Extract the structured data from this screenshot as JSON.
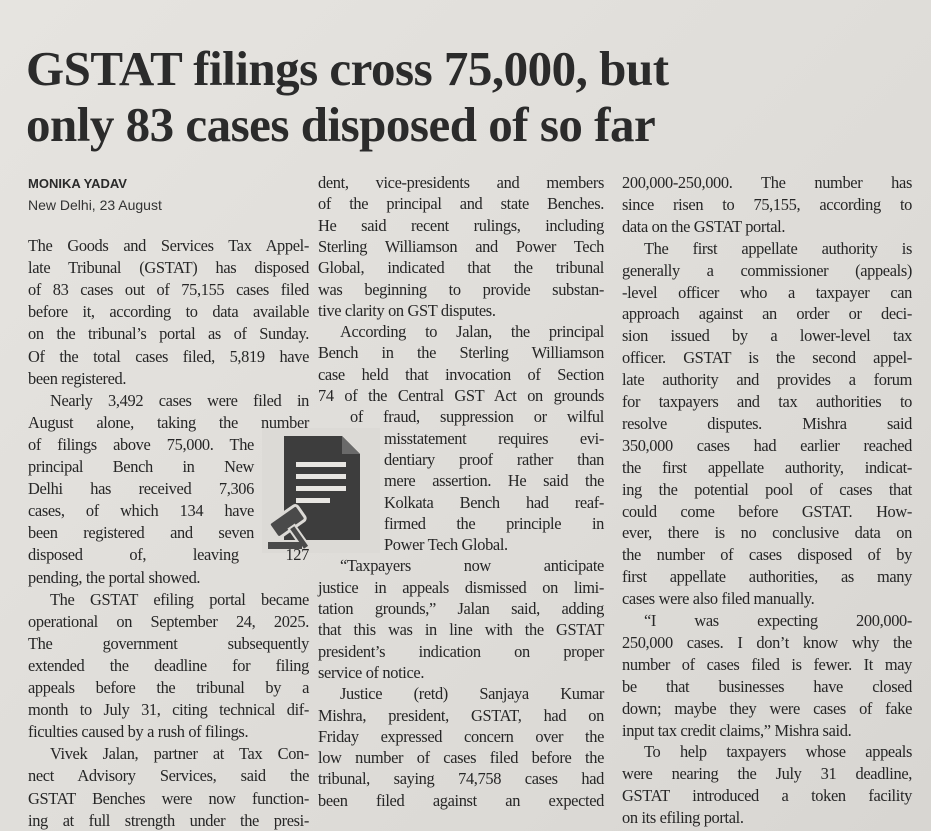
{
  "headline": [
    "GSTAT filings cross 75,000, but",
    "only 83 cases disposed of so far"
  ],
  "byline": {
    "author": "MONIKA YADAV",
    "dateline": "New Delhi, 23 August"
  },
  "columns": [
    [
      [
        "The Goods and Services Tax Appel-",
        "late Tribunal (GSTAT) has disposed",
        "of 83 cases out of 75,155 cases filed",
        "before it, according to data available",
        "on the tribunal’s portal as of Sunday.",
        "Of the total cases filed, 5,819 have",
        "been registered."
      ],
      [
        "Nearly 3,492 cases were filed in",
        "August alone, taking the number",
        "of filings above 75,000. The",
        "principal Bench in New",
        "Delhi has received 7,306",
        "cases, of which 134 have",
        "been registered and seven",
        "disposed of, leaving 127",
        "pending, the portal showed."
      ],
      [
        "The GSTAT efiling portal became",
        "operational on September 24, 2025.",
        "The government subsequently",
        "extended the deadline for filing",
        "appeals before the tribunal by a",
        "month to July 31, citing technical dif-",
        "ficulties caused by a rush of filings."
      ],
      [
        "Vivek Jalan, partner at Tax Con-",
        "nect Advisory Services, said the",
        "GSTAT Benches were now function-",
        "ing at full strength under the presi-"
      ]
    ],
    [
      [
        "dent, vice-presidents and members",
        "of the principal and state Benches.",
        "He said recent rulings, including",
        "Sterling Williamson and Power Tech",
        "Global, indicated that the tribunal",
        "was beginning to provide substan-",
        "tive clarity on GST disputes."
      ],
      [
        "According to Jalan, the principal",
        "Bench in the Sterling Williamson",
        "case held that invocation of Section",
        "74 of the Central GST Act on grounds",
        "of fraud, suppression or wilful",
        "misstatement requires evi-",
        "dentiary proof rather than",
        "mere assertion. He said the",
        "Kolkata Bench had reaf-",
        "firmed the principle in",
        "Power Tech Global."
      ],
      [
        "“Taxpayers now anticipate",
        "justice in appeals dismissed on limi-",
        "tation grounds,” Jalan said, adding",
        "that this was in line with the GSTAT",
        "president’s indication on proper",
        "service of notice."
      ],
      [
        "Justice (retd) Sanjaya Kumar",
        "Mishra, president, GSTAT, had on",
        "Friday expressed concern over the",
        "low number of cases filed before the",
        "tribunal, saying 74,758 cases had",
        "been filed against an expected"
      ]
    ],
    [
      [
        "200,000-250,000. The number has",
        "since risen to 75,155, according to",
        "data on the GSTAT portal."
      ],
      [
        "The first appellate authority is",
        "generally a commissioner (appeals)",
        "-level officer who a taxpayer can",
        "approach against an order or deci-",
        "sion issued by a lower-level tax",
        "officer. GSTAT is the second appel-",
        "late authority and provides a forum",
        "for taxpayers and tax authorities to",
        "resolve disputes. Mishra said",
        "350,000 cases had earlier reached",
        "the first appellate authority, indicat-",
        "ing the potential pool of cases that",
        "could come before GSTAT. How-",
        "ever, there is no conclusive data on",
        "the number of cases disposed of by",
        "first appellate authorities, as many",
        "cases were also filed manually."
      ],
      [
        "“I was expecting 200,000-",
        "250,000 cases. I don’t know why the",
        "number of cases filed is fewer. It may",
        "be that businesses have closed",
        "down; maybe they were cases of fake",
        "input tax credit claims,” Mishra said."
      ],
      [
        "To help taxpayers whose appeals",
        "were nearing the July 31 deadline,",
        "GSTAT introduced a token facility",
        "on its efiling portal."
      ]
    ]
  ]
}
